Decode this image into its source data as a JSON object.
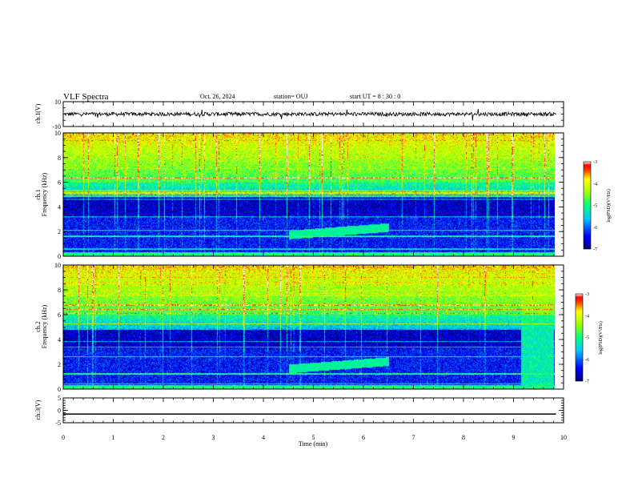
{
  "header": {
    "title": "VLF Spectra",
    "date": "Oct. 26, 2024",
    "station": "station= OUJ",
    "start": "start  UT =   8  : 30 : 0"
  },
  "chart_data": [
    {
      "panel": "ch1-waveform",
      "type": "line",
      "ylabel": "ch.1(V)",
      "ylim": [
        -10,
        10
      ],
      "yticks": [
        "10",
        "-10"
      ],
      "x": [
        0,
        10
      ],
      "y_mean": 0,
      "noise_amplitude": 1.5
    },
    {
      "panel": "ch1-spectrogram",
      "type": "heatmap",
      "ylabel": "ch.1\nFrequency (kHz)",
      "ylim": [
        0,
        10
      ],
      "yticks": [
        "0",
        "2",
        "4",
        "6",
        "8",
        "10"
      ],
      "xlim": [
        0,
        10
      ],
      "colorbar": {
        "label": "log(PSD)(V²/Hz)",
        "ticks": [
          "-3",
          "-4",
          "-5",
          "-6",
          "-7"
        ],
        "range": [
          -7,
          -3
        ]
      },
      "features": [
        {
          "name": "emission band",
          "t_start": 4.5,
          "t_end": 6.5,
          "f_start": 1.7,
          "f_end": 2.3
        }
      ]
    },
    {
      "panel": "ch2-spectrogram",
      "type": "heatmap",
      "ylabel": "ch.2\nFrequency (kHz)",
      "ylim": [
        0,
        10
      ],
      "yticks": [
        "0",
        "2",
        "4",
        "6",
        "8",
        "10"
      ],
      "xlim": [
        0,
        10
      ],
      "colorbar": {
        "label": "log(PSD)(V²/Hz)",
        "ticks": [
          "-3",
          "-4",
          "-5",
          "-6",
          "-7"
        ],
        "range": [
          -7,
          -3
        ]
      },
      "features": [
        {
          "name": "emission band",
          "t_start": 4.5,
          "t_end": 6.5,
          "f_start": 1.6,
          "f_end": 2.2
        },
        {
          "name": "broadband burst",
          "t_start": 9.15,
          "t_end": 9.8,
          "f_start": 0,
          "f_end": 10
        }
      ]
    },
    {
      "panel": "ch3-waveform",
      "type": "line",
      "ylabel": "ch.3(V)",
      "ylim": [
        -5,
        5
      ],
      "yticks": [
        "5",
        "0",
        "-5"
      ],
      "x": [
        0,
        10
      ],
      "y_mean": -1.5,
      "noise_amplitude": 0
    }
  ],
  "xaxis": {
    "label": "Time  (min)",
    "ticks": [
      "0",
      "1",
      "2",
      "3",
      "4",
      "5",
      "6",
      "7",
      "8",
      "9",
      "10"
    ]
  }
}
